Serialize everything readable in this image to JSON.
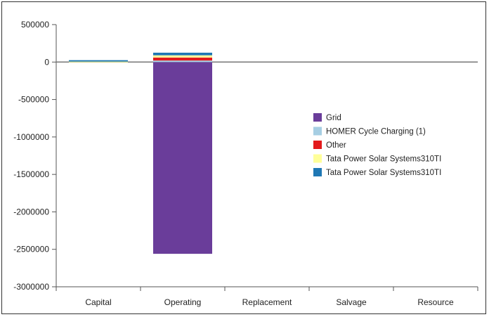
{
  "chart_data": {
    "type": "bar",
    "stacked": true,
    "categories": [
      "Capital",
      "Operating",
      "Replacement",
      "Salvage",
      "Resource"
    ],
    "ylim": [
      -3000000,
      500000
    ],
    "yticks": [
      500000,
      0,
      -500000,
      -1000000,
      -1500000,
      -2000000,
      -2500000,
      -3000000
    ],
    "ytick_labels": [
      "500000",
      "0",
      "-500000",
      "-1000000",
      "-1500000",
      "-2000000",
      "-2500000",
      "-3000000"
    ],
    "grid": false,
    "legend_position": "right",
    "series": [
      {
        "name": "Grid",
        "color": "#6a3d9a",
        "values": [
          0,
          -2560000,
          0,
          0,
          0
        ]
      },
      {
        "name": "HOMER Cycle Charging (1)",
        "color": "#a6cee3",
        "values": [
          0,
          20000,
          0,
          0,
          0
        ]
      },
      {
        "name": "Other",
        "color": "#e31a1c",
        "values": [
          0,
          40000,
          0,
          0,
          0
        ]
      },
      {
        "name": "Tata Power Solar Systems310TI",
        "color": "#ffff99",
        "values": [
          15000,
          30000,
          0,
          0,
          0
        ]
      },
      {
        "name": "Tata Power Solar Systems310TI",
        "color": "#1f78b4",
        "values": [
          10000,
          35000,
          0,
          0,
          0
        ]
      }
    ]
  }
}
